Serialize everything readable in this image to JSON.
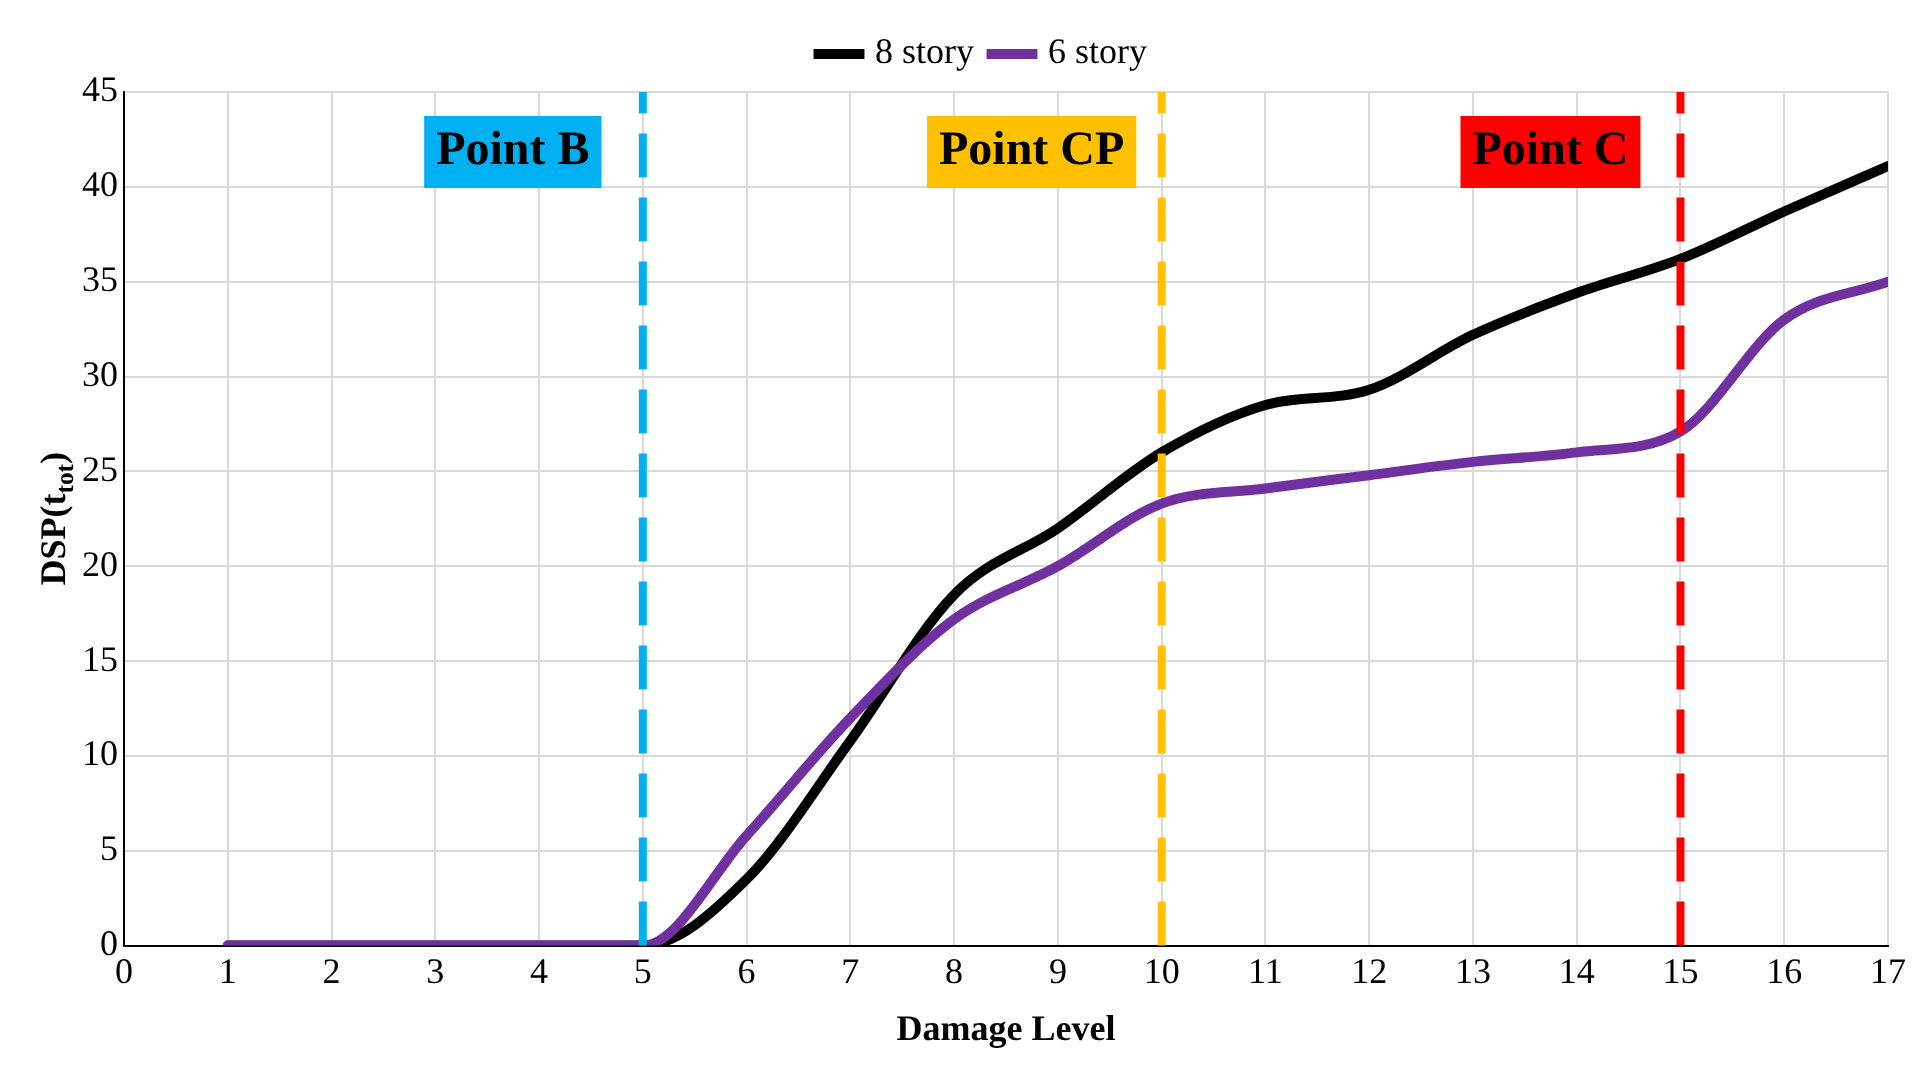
{
  "chart_data": {
    "type": "line",
    "xlabel": "Damage Level",
    "ylabel": "DSP(t$_{tot}$)",
    "x": [
      1,
      2,
      3,
      4,
      5,
      6,
      7,
      8,
      9,
      10,
      11,
      12,
      13,
      14,
      15,
      16,
      17
    ],
    "series": [
      {
        "name": "8 story",
        "color": "#000000",
        "values": [
          0,
          0,
          0,
          0,
          0,
          3.5,
          10.8,
          18.5,
          22,
          26,
          28.5,
          29.3,
          32.2,
          34.4,
          36.2,
          38.7,
          41.1
        ]
      },
      {
        "name": "6 story",
        "color": "#7030a0",
        "values": [
          0,
          0,
          0,
          0,
          0,
          5.8,
          12,
          17.2,
          20,
          23.3,
          24.1,
          24.8,
          25.5,
          26,
          27.1,
          33,
          35
        ]
      }
    ],
    "xlim": [
      0,
      17
    ],
    "xticks": [
      0,
      1,
      2,
      3,
      4,
      5,
      6,
      7,
      8,
      9,
      10,
      11,
      12,
      13,
      14,
      15,
      16,
      17
    ],
    "ylim": [
      0,
      45
    ],
    "yticks": [
      0,
      5,
      10,
      15,
      20,
      25,
      30,
      35,
      40,
      45
    ],
    "grid": true,
    "legend": "top",
    "marker": "none",
    "line_style": "solid",
    "ref_lines": [
      {
        "axis": "x",
        "value": 5,
        "label": "Point B",
        "color": "#00b0f0",
        "line_style": "dashed"
      },
      {
        "axis": "x",
        "value": 10,
        "label": "Point CP",
        "color": "#ffc000",
        "line_style": "dashed"
      },
      {
        "axis": "x",
        "value": 15,
        "label": "Point C",
        "color": "#ff0000",
        "line_style": "dashed"
      }
    ]
  }
}
